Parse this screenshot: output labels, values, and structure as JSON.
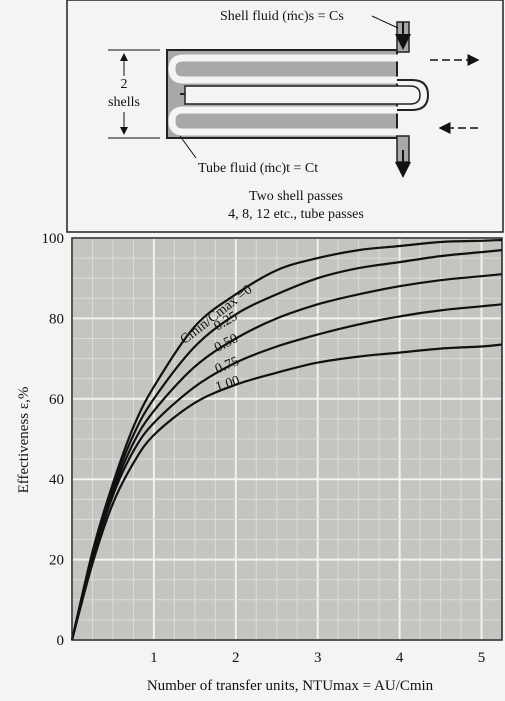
{
  "diagram": {
    "shell_fluid_label": "Shell fluid (ṁc)s = Cs",
    "tube_fluid_label": "Tube fluid (ṁc)t = Ct",
    "shells_count": "2",
    "shells_label": "shells",
    "caption_line1": "Two shell passes",
    "caption_line2": "4, 8, 12 etc., tube passes"
  },
  "chart_data": {
    "type": "line",
    "title": "",
    "xlabel": "Number of transfer units, NTUmax = AU/Cmin",
    "ylabel": "Effectiveness ε,%",
    "xlim": [
      0,
      5.25
    ],
    "ylim": [
      0,
      100
    ],
    "xticks": [
      1,
      2,
      3,
      4,
      5
    ],
    "yticks": [
      0,
      20,
      40,
      60,
      80,
      100
    ],
    "grid": true,
    "minor_grid_step_x": 0.25,
    "minor_grid_step_y": 5,
    "curve_label_prefix": "Cmin/Cmax =",
    "series": [
      {
        "name": "0",
        "x": [
          0,
          0.25,
          0.5,
          0.75,
          1.0,
          1.5,
          2.0,
          2.5,
          3.0,
          3.5,
          4.0,
          4.5,
          5.0,
          5.25
        ],
        "y": [
          0,
          22,
          39,
          53,
          63,
          78,
          86,
          92,
          95,
          97,
          98,
          99,
          99.3,
          99.5
        ]
      },
      {
        "name": "0.25",
        "x": [
          0,
          0.25,
          0.5,
          0.75,
          1.0,
          1.5,
          2.0,
          2.5,
          3.0,
          3.5,
          4.0,
          4.5,
          5.0,
          5.25
        ],
        "y": [
          0,
          21,
          38,
          51,
          60,
          73,
          81,
          86,
          90,
          92.5,
          94,
          95.5,
          96.5,
          97
        ]
      },
      {
        "name": "0.50",
        "x": [
          0,
          0.25,
          0.5,
          0.75,
          1.0,
          1.5,
          2.0,
          2.5,
          3.0,
          3.5,
          4.0,
          4.5,
          5.0,
          5.25
        ],
        "y": [
          0,
          21,
          37,
          49,
          57,
          68,
          75,
          80,
          83.5,
          86,
          88,
          89.5,
          90.5,
          91
        ]
      },
      {
        "name": "0.75",
        "x": [
          0,
          0.25,
          0.5,
          0.75,
          1.0,
          1.5,
          2.0,
          2.5,
          3.0,
          3.5,
          4.0,
          4.5,
          5.0,
          5.25
        ],
        "y": [
          0,
          20,
          36,
          47,
          54,
          63,
          69,
          73,
          76,
          78.5,
          80.5,
          82,
          83,
          83.5
        ]
      },
      {
        "name": "1.00",
        "x": [
          0,
          0.25,
          0.5,
          0.75,
          1.0,
          1.5,
          2.0,
          2.5,
          3.0,
          3.5,
          4.0,
          4.5,
          5.0,
          5.25
        ],
        "y": [
          0,
          19,
          34,
          44,
          51,
          59,
          63.5,
          66.5,
          69,
          70.5,
          71.5,
          72.5,
          73,
          73.5
        ]
      }
    ]
  },
  "colors": {
    "plot_bg": "#c4c4c0",
    "grid_major": "#f2f2f0",
    "grid_minor": "#dcdcd8",
    "curve": "#111111",
    "frame": "#222222"
  }
}
